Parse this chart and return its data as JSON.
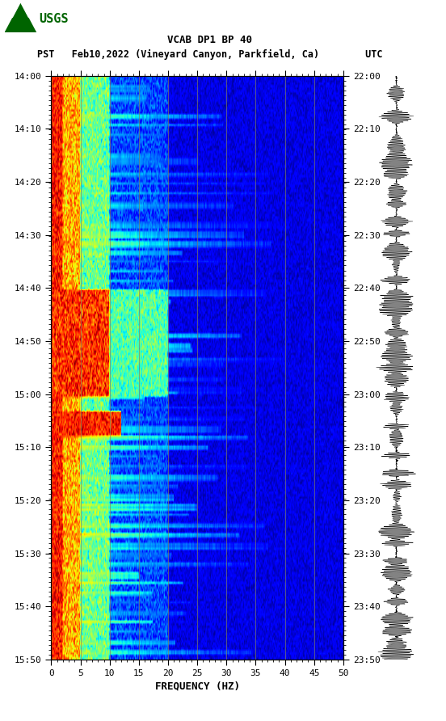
{
  "title_line1": "VCAB DP1 BP 40",
  "title_line2": "PST   Feb10,2022 (Vineyard Canyon, Parkfield, Ca)        UTC",
  "xlabel": "FREQUENCY (HZ)",
  "freq_min": 0,
  "freq_max": 50,
  "freq_ticks": [
    0,
    5,
    10,
    15,
    20,
    25,
    30,
    35,
    40,
    45,
    50
  ],
  "pst_ticks": [
    "14:00",
    "14:10",
    "14:20",
    "14:30",
    "14:40",
    "14:50",
    "15:00",
    "15:10",
    "15:20",
    "15:30",
    "15:40",
    "15:50"
  ],
  "utc_ticks": [
    "22:00",
    "22:10",
    "22:20",
    "22:30",
    "22:40",
    "22:50",
    "23:00",
    "23:10",
    "23:20",
    "23:30",
    "23:40",
    "23:50"
  ],
  "spectrogram_vgrid_color": "#808060",
  "spectrogram_vgrid_freqs": [
    5,
    10,
    15,
    20,
    25,
    30,
    35,
    40,
    45
  ],
  "font_family": "monospace",
  "title_fontsize": 9,
  "tick_fontsize": 8,
  "label_fontsize": 9,
  "usgs_color": "#006400",
  "background_color": "#ffffff"
}
